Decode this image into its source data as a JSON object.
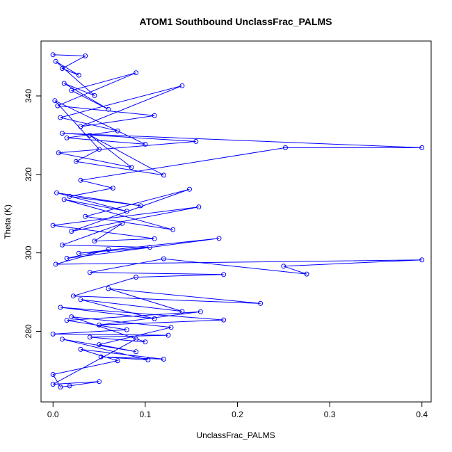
{
  "chart_data": {
    "type": "line",
    "title": "ATOM1 Southbound UnclassFrac_PALMS",
    "xlabel": "UnclassFrac_PALMS",
    "ylabel": "Theta (K)",
    "xlim": [
      -0.013,
      0.41
    ],
    "ylim": [
      262,
      354
    ],
    "x_ticks": [
      0.0,
      0.1,
      0.2,
      0.3,
      0.4
    ],
    "x_tick_labels": [
      "0.0",
      "0.1",
      "0.2",
      "0.3",
      "0.4"
    ],
    "y_ticks": [
      280,
      300,
      320,
      340
    ],
    "y_tick_labels": [
      "280",
      "300",
      "320",
      "340"
    ],
    "grid": false,
    "legend": null,
    "color": "#0000ff",
    "marker": "open-circle",
    "series": [
      {
        "x": [
          0.0,
          0.035,
          0.01,
          0.028,
          0.003,
          0.045,
          0.012,
          0.06,
          0.02,
          0.09,
          0.005,
          0.11,
          0.03,
          0.14,
          0.008,
          0.07,
          0.015,
          0.1,
          0.002,
          0.05,
          0.025,
          0.12,
          0.04,
          0.085,
          0.006,
          0.155,
          0.01,
          0.4,
          0.252,
          0.03,
          0.065,
          0.018,
          0.095,
          0.004,
          0.08,
          0.012,
          0.13,
          0.035,
          0.148,
          0.02,
          0.158,
          0.0,
          0.11,
          0.045,
          0.075,
          0.01,
          0.105,
          0.028,
          0.18,
          0.015,
          0.06,
          0.003,
          0.4,
          0.25,
          0.275,
          0.12,
          0.04,
          0.185,
          0.09,
          0.022,
          0.225,
          0.06,
          0.14,
          0.03,
          0.11,
          0.008,
          0.185,
          0.05,
          0.16,
          0.015,
          0.08,
          0.0,
          0.125,
          0.04,
          0.1,
          0.02,
          0.128,
          0.05,
          0.09,
          0.01,
          0.103,
          0.052,
          0.12,
          0.03,
          0.07,
          0.0,
          0.008,
          0.018,
          0.05,
          0.0,
          0.09
        ],
        "y": [
          350.5,
          350.2,
          347.0,
          345.3,
          348.8,
          340.1,
          343.2,
          336.6,
          341.4,
          345.9,
          337.5,
          335.0,
          332.2,
          342.6,
          334.5,
          331.1,
          329.3,
          327.7,
          338.8,
          326.4,
          323.3,
          319.8,
          330.0,
          321.8,
          325.5,
          328.4,
          330.5,
          326.8,
          326.8,
          318.5,
          316.5,
          314.4,
          312.0,
          315.3,
          310.6,
          313.6,
          305.9,
          309.3,
          316.2,
          305.5,
          311.7,
          307.0,
          303.6,
          303.0,
          307.5,
          302.0,
          301.4,
          299.9,
          303.7,
          298.6,
          300.9,
          297.1,
          298.2,
          296.6,
          294.6,
          298.5,
          295.0,
          294.5,
          293.8,
          289.0,
          287.1,
          290.9,
          285.1,
          288.1,
          283.2,
          286.1,
          282.9,
          281.6,
          285.0,
          282.8,
          280.4,
          279.3,
          279.0,
          278.5,
          277.3,
          283.7,
          281.0,
          276.6,
          274.8,
          278.0,
          272.7,
          273.5,
          272.9,
          275.4,
          272.5,
          269.0,
          265.8,
          266.1,
          267.2,
          266.5,
          278.0
        ]
      }
    ]
  }
}
